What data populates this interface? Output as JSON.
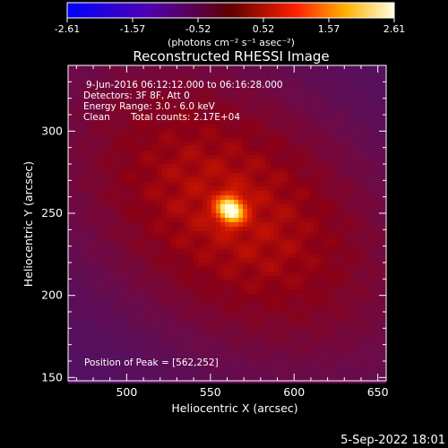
{
  "chart_data": {
    "type": "heatmap",
    "title": "Reconstructed RHESSI Image",
    "xlabel": "Heliocentric X (arcsec)",
    "ylabel": "Heliocentric Y (arcsec)",
    "xlim": [
      465,
      655
    ],
    "ylim": [
      148,
      340
    ],
    "x_ticks": [
      500,
      550,
      600,
      650
    ],
    "y_ticks": [
      150,
      200,
      250,
      300
    ],
    "colorbar": {
      "range": [
        -2.61,
        2.61
      ],
      "ticks": [
        "-2.61",
        "-1.57",
        "-0.52",
        "0.52",
        "1.57",
        "2.61"
      ],
      "unit_label": "(photons cm⁻² s⁻¹ asec⁻²)"
    },
    "annotations": {
      "time_range": "9-Jun-2016 06:12:12.000 to 06:16:28.000",
      "detectors": "Detectors: 3F 8F, Att 0",
      "energy_range": "Energy Range: 3.0 - 6.0 keV",
      "method": "Clean",
      "total_counts": "Total counts: 2.17E+04",
      "peak_position": "Position of Peak = [562,252]"
    },
    "peak": {
      "x": 562,
      "y": 252
    },
    "timestamp": "5-Sep-2022 18:01"
  }
}
